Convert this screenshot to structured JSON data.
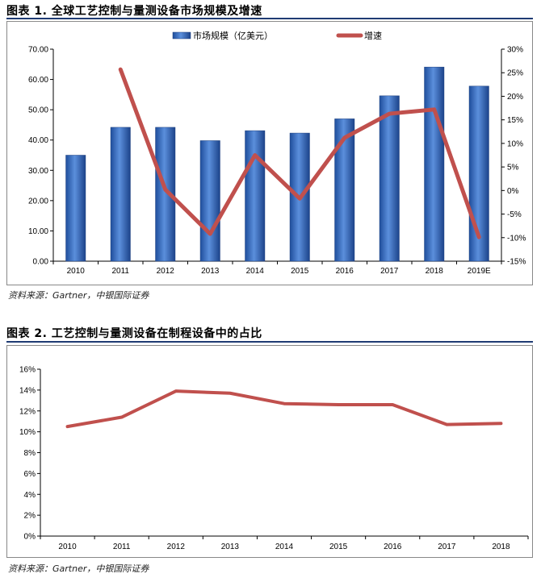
{
  "figures": [
    {
      "title": "图表 1. 全球工艺控制与量测设备市场规模及增速",
      "source": "资料来源：Gartner，中银国际证券"
    },
    {
      "title": "图表 2. 工艺控制与量测设备在制程设备中的占比",
      "source": "资料来源：Gartner，中银国际证券"
    }
  ],
  "chart_data": [
    {
      "type": "bar",
      "categories": [
        "2010",
        "2011",
        "2012",
        "2013",
        "2014",
        "2015",
        "2016",
        "2017",
        "2018",
        "2019E"
      ],
      "series": [
        {
          "name": "市场规模（亿美元）",
          "type": "bar",
          "axis": "left",
          "color": "#3a6fc4",
          "values": [
            35.0,
            44.2,
            44.2,
            39.8,
            43.1,
            42.3,
            47.0,
            54.6,
            64.1,
            57.8
          ]
        },
        {
          "name": "增速",
          "type": "line",
          "axis": "right",
          "color": "#c0504d",
          "values": [
            null,
            25.7,
            0.2,
            -9.2,
            7.5,
            -1.7,
            11.2,
            16.3,
            17.2,
            -9.9
          ]
        }
      ],
      "ylim": [
        0,
        70
      ],
      "yticks": [
        "0.00",
        "10.00",
        "20.00",
        "30.00",
        "40.00",
        "50.00",
        "60.00",
        "70.00"
      ],
      "y2lim": [
        -15,
        30
      ],
      "y2ticks": [
        "-15%",
        "-10%",
        "-5%",
        "0%",
        "5%",
        "10%",
        "15%",
        "20%",
        "25%",
        "30%"
      ],
      "legend": "top-center",
      "grid": false
    },
    {
      "type": "line",
      "categories": [
        "2010",
        "2011",
        "2012",
        "2013",
        "2014",
        "2015",
        "2016",
        "2017",
        "2018"
      ],
      "series": [
        {
          "color": "#c0504d",
          "values": [
            10.5,
            11.4,
            13.9,
            13.7,
            12.7,
            12.6,
            12.6,
            10.7,
            10.8
          ]
        }
      ],
      "ylim": [
        0,
        16
      ],
      "yticks": [
        "0%",
        "2%",
        "4%",
        "6%",
        "8%",
        "10%",
        "12%",
        "14%",
        "16%"
      ],
      "legend": "none",
      "grid": false
    }
  ]
}
